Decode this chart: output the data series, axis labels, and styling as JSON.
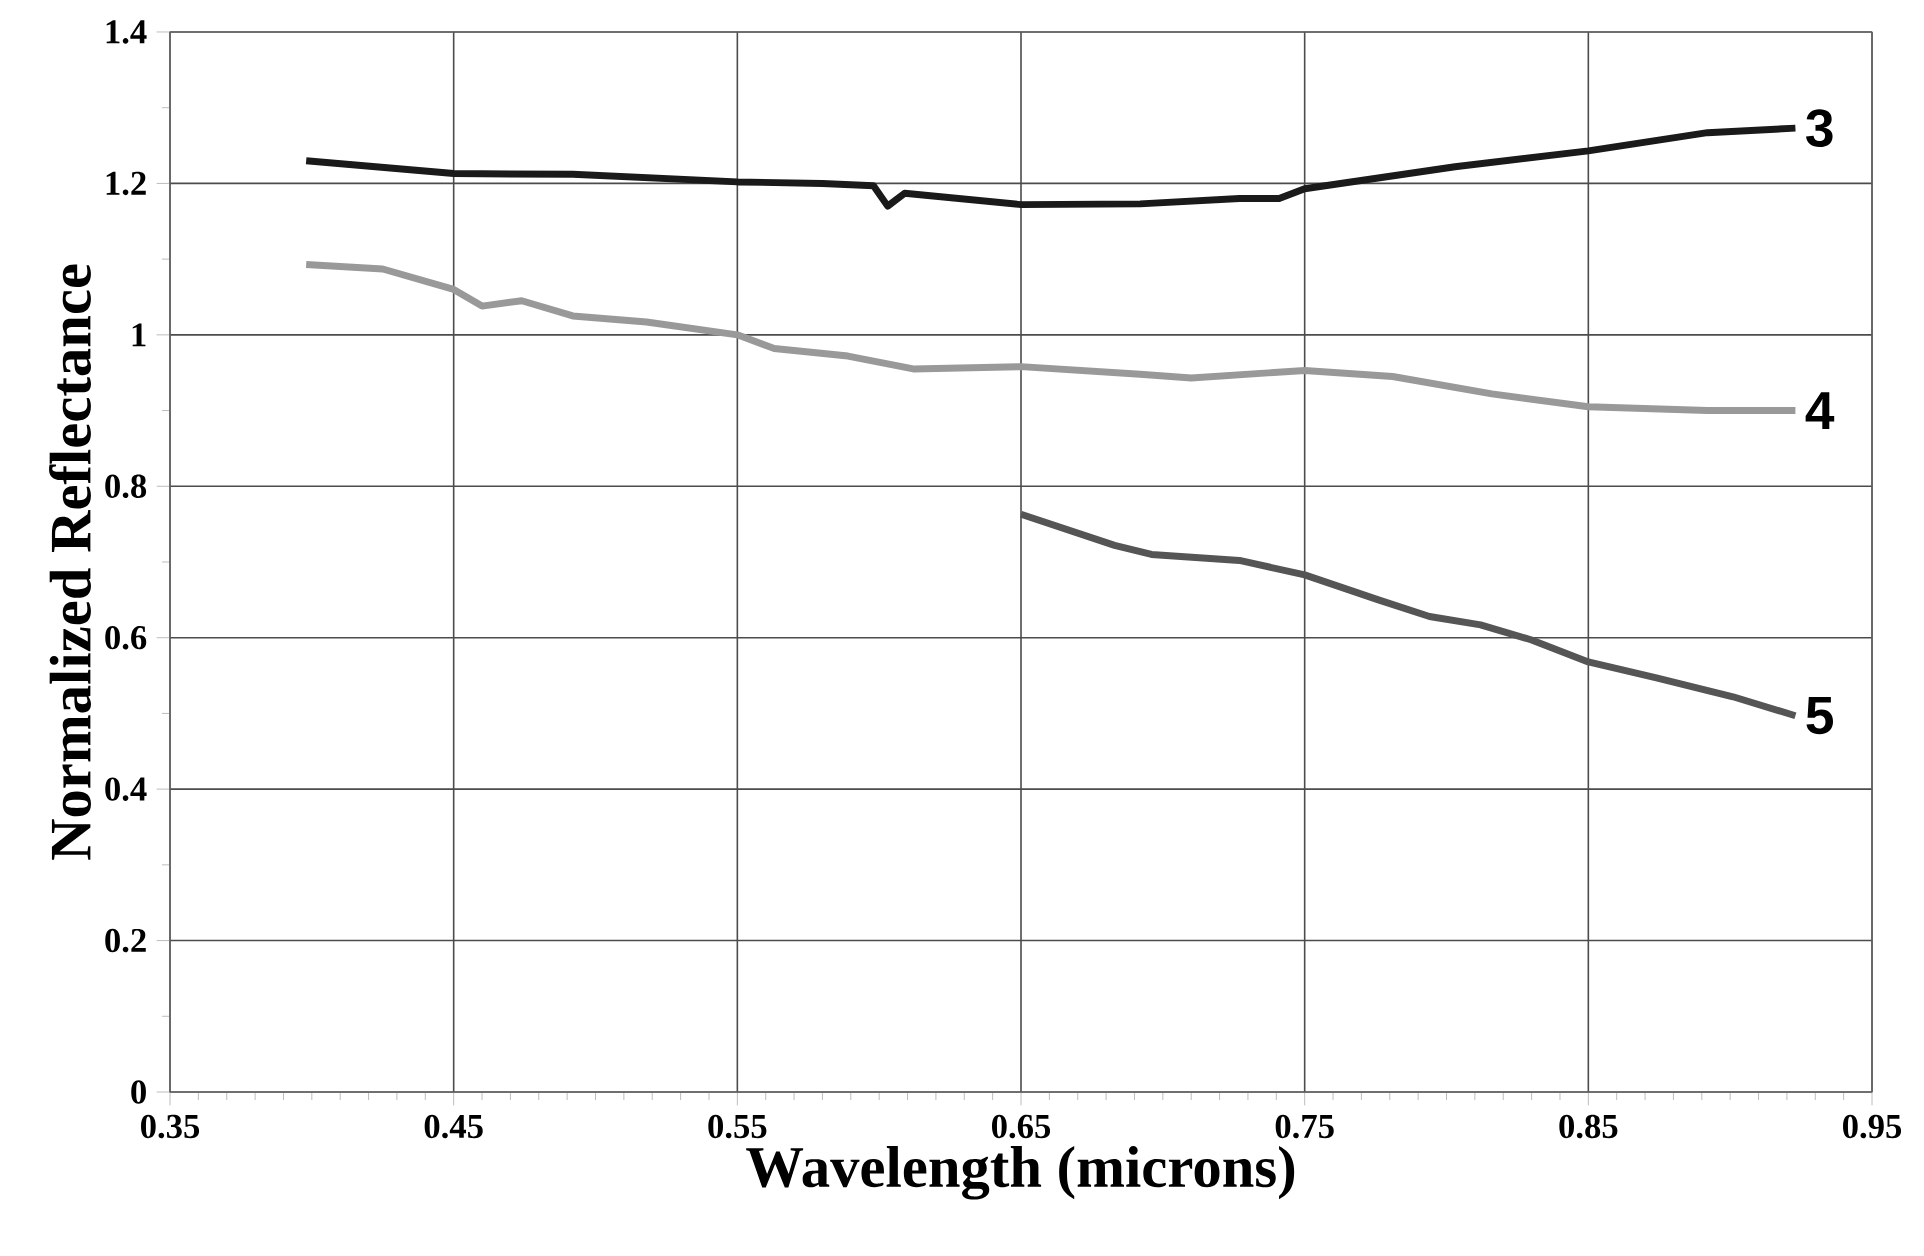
{
  "chart_data": {
    "type": "line",
    "xlabel": "Wavelength (microns)",
    "ylabel": "Normalized Reflectance",
    "xlim": [
      0.35,
      0.95
    ],
    "ylim": [
      0,
      1.4
    ],
    "xticks": [
      0.35,
      0.45,
      0.55,
      0.65,
      0.75,
      0.85,
      0.95
    ],
    "yticks": [
      0,
      0.2,
      0.4,
      0.6,
      0.8,
      1,
      1.2,
      1.4
    ],
    "grid": true,
    "series": [
      {
        "name": "3",
        "color": "#1a1a1a",
        "x": [
          0.398,
          0.45,
          0.492,
          0.55,
          0.58,
          0.598,
          0.603,
          0.609,
          0.65,
          0.692,
          0.727,
          0.741,
          0.75,
          0.803,
          0.85,
          0.892,
          0.923
        ],
        "values": [
          1.23,
          1.213,
          1.212,
          1.202,
          1.2,
          1.197,
          1.17,
          1.187,
          1.172,
          1.173,
          1.18,
          1.18,
          1.193,
          1.222,
          1.243,
          1.267,
          1.273
        ]
      },
      {
        "name": "4",
        "color": "#999999",
        "x": [
          0.398,
          0.425,
          0.45,
          0.46,
          0.474,
          0.492,
          0.518,
          0.55,
          0.563,
          0.589,
          0.612,
          0.65,
          0.692,
          0.71,
          0.75,
          0.781,
          0.816,
          0.85,
          0.892,
          0.923
        ],
        "values": [
          1.093,
          1.087,
          1.06,
          1.038,
          1.045,
          1.025,
          1.017,
          1.0,
          0.982,
          0.972,
          0.955,
          0.958,
          0.948,
          0.943,
          0.953,
          0.945,
          0.922,
          0.905,
          0.9,
          0.9
        ]
      },
      {
        "name": "5",
        "color": "#555555",
        "x": [
          0.65,
          0.683,
          0.696,
          0.727,
          0.75,
          0.776,
          0.794,
          0.812,
          0.83,
          0.85,
          0.874,
          0.901,
          0.923
        ],
        "values": [
          0.763,
          0.722,
          0.71,
          0.702,
          0.683,
          0.65,
          0.628,
          0.617,
          0.597,
          0.568,
          0.547,
          0.522,
          0.497
        ]
      }
    ]
  }
}
